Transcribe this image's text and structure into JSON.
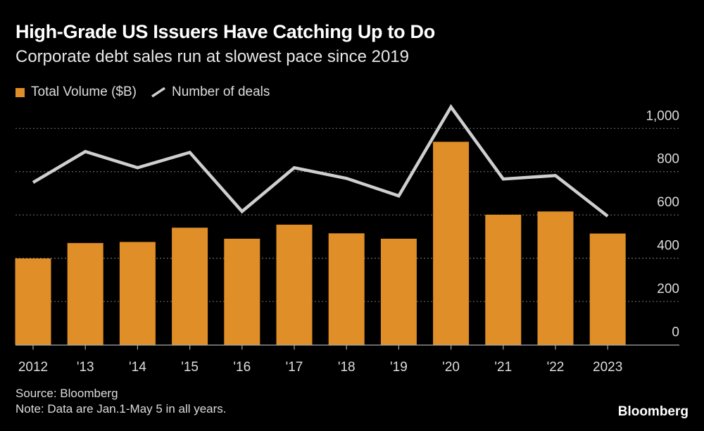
{
  "chart_data": {
    "type": "bar",
    "title": "High-Grade US Issuers Have Catching Up to Do",
    "subtitle": "Corporate debt sales run at slowest pace since 2019",
    "categories": [
      "2012",
      "'13",
      "'14",
      "'15",
      "'16",
      "'17",
      "'18",
      "'19",
      "'20",
      "'21",
      "'22",
      "2023"
    ],
    "series": [
      {
        "name": "Total Volume ($B)",
        "type": "bar",
        "color": "#e08e27",
        "values": [
          399,
          470,
          475,
          541,
          490,
          555,
          515,
          490,
          938,
          601,
          616,
          514
        ]
      },
      {
        "name": "Number of deals",
        "type": "line",
        "color": "#cfcfcf",
        "values": [
          750,
          893,
          818,
          889,
          616,
          818,
          769,
          688,
          1099,
          766,
          782,
          594
        ]
      }
    ],
    "ylim": [
      0,
      1000
    ],
    "yticks": [
      0,
      200,
      400,
      600,
      800,
      1000
    ],
    "ytick_labels": [
      "0",
      "200",
      "400",
      "600",
      "800",
      "1,000"
    ],
    "xlabel": "",
    "ylabel": "",
    "grid": true,
    "legend_position": "top-left"
  },
  "source": "Source: Bloomberg",
  "note": "Note: Data are Jan.1-May 5 in all years.",
  "logo": "Bloomberg"
}
